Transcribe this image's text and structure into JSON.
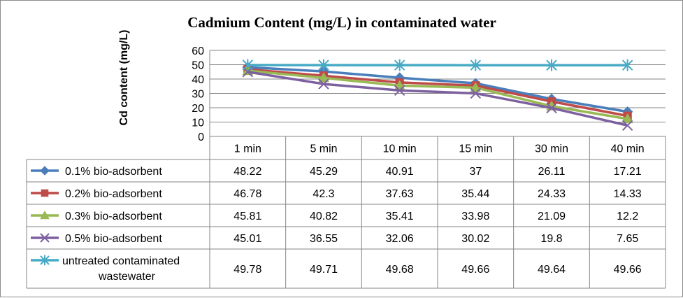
{
  "chart_data": {
    "type": "line",
    "title": "Cadmium Content (mg/L) in contaminated water",
    "ylabel": "Cd content (mg/L)",
    "xlabel": "",
    "categories": [
      "1 min",
      "5 min",
      "10 min",
      "15 min",
      "30 min",
      "40 min"
    ],
    "ylim": [
      0,
      60
    ],
    "yticks": [
      0,
      10,
      20,
      30,
      40,
      50,
      60
    ],
    "grid": true,
    "legend": "data-table",
    "series": [
      {
        "name": "0.1% bio-adsorbent",
        "color": "#4a7ebb",
        "marker": "diamond",
        "values": [
          48.22,
          45.29,
          40.91,
          37,
          26.11,
          17.21
        ],
        "labels": [
          "48.22",
          "45.29",
          "40.91",
          "37",
          "26.11",
          "17.21"
        ]
      },
      {
        "name": "0.2% bio-adsorbent",
        "color": "#be4b48",
        "marker": "square",
        "values": [
          46.78,
          42.3,
          37.63,
          35.44,
          24.33,
          14.33
        ],
        "labels": [
          "46.78",
          "42.3",
          "37.63",
          "35.44",
          "24.33",
          "14.33"
        ]
      },
      {
        "name": "0.3% bio-adsorbent",
        "color": "#98b954",
        "marker": "triangle",
        "values": [
          45.81,
          40.82,
          35.41,
          33.98,
          21.09,
          12.2
        ],
        "labels": [
          "45.81",
          "40.82",
          "35.41",
          "33.98",
          "21.09",
          "12.2"
        ]
      },
      {
        "name": "0.5% bio-adsorbent",
        "color": "#7d60a0",
        "marker": "x",
        "values": [
          45.01,
          36.55,
          32.06,
          30.02,
          19.8,
          7.65
        ],
        "labels": [
          "45.01",
          "36.55",
          "32.06",
          "30.02",
          "19.8",
          "7.65"
        ]
      },
      {
        "name": "untreated contaminated wastewater",
        "name_lines": [
          "untreated contaminated",
          "wastewater"
        ],
        "color": "#46aac5",
        "marker": "star",
        "values": [
          49.78,
          49.71,
          49.68,
          49.66,
          49.64,
          49.66
        ],
        "labels": [
          "49.78",
          "49.71",
          "49.68",
          "49.66",
          "49.64",
          "49.66"
        ]
      }
    ]
  }
}
